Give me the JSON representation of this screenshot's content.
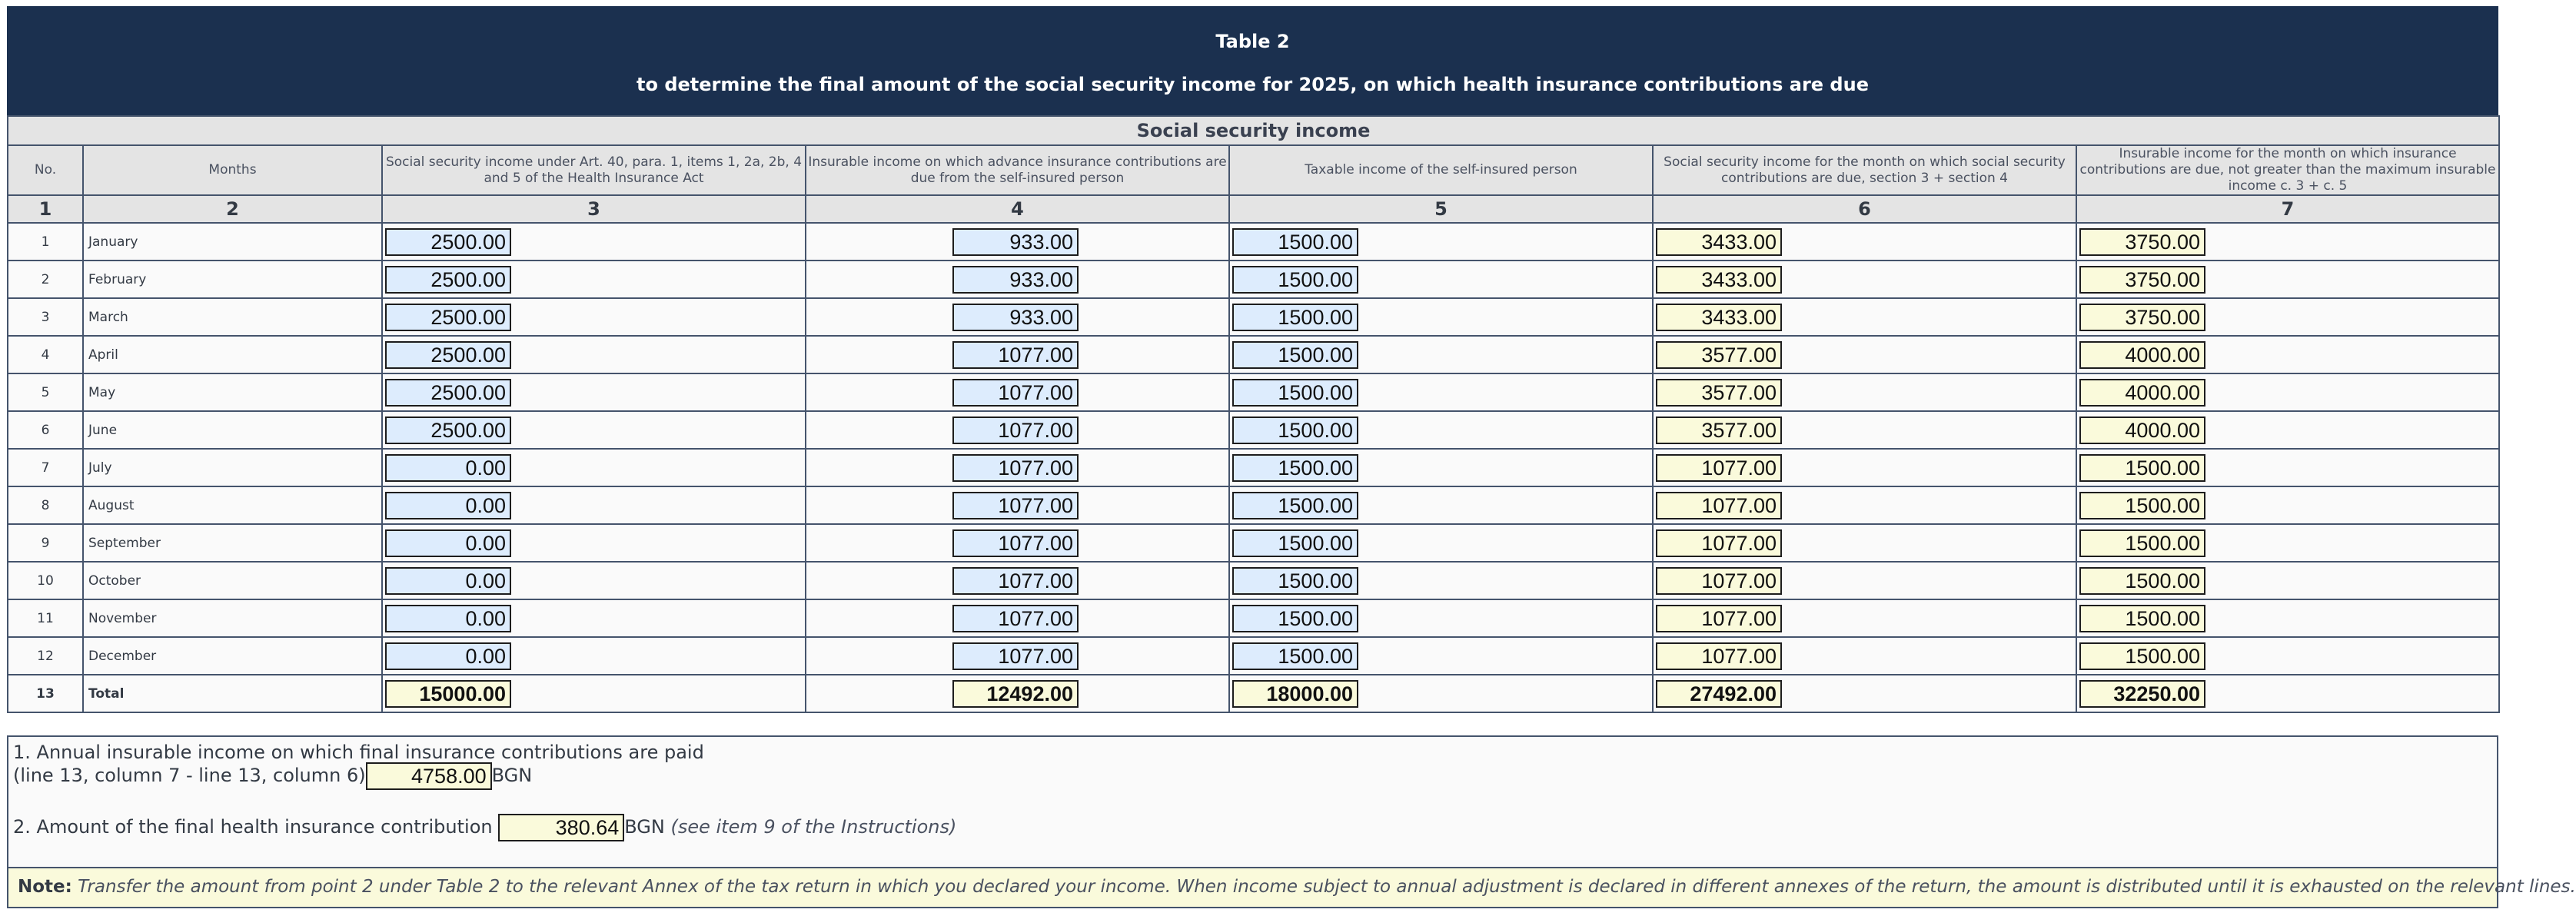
{
  "header": {
    "title": "Table 2",
    "subtitle": "to determine the final amount of the social security income for 2025, on which health insurance contributions are due"
  },
  "table": {
    "section_title": "Social security income",
    "columns": [
      "No.",
      "Months",
      "Social security income under Art. 40, para. 1, items 1, 2a, 2b, 4 and 5 of the Health Insurance Act",
      "Insurable income on which advance insurance contributions are due from the self-insured person",
      "Taxable income of the self-insured person",
      "Social security income for the month on which social security contributions are due, section 3 + section 4",
      "Insurable income for the month on which insurance contributions are due, not greater than the maximum insurable income c. 3 + c. 5"
    ],
    "column_numbers": [
      "1",
      "2",
      "3",
      "4",
      "5",
      "6",
      "7"
    ],
    "rows": [
      {
        "no": "1",
        "month": "January",
        "c3": "2500.00",
        "c4": "933.00",
        "c5": "1500.00",
        "c6": "3433.00",
        "c7": "3750.00"
      },
      {
        "no": "2",
        "month": "February",
        "c3": "2500.00",
        "c4": "933.00",
        "c5": "1500.00",
        "c6": "3433.00",
        "c7": "3750.00"
      },
      {
        "no": "3",
        "month": "March",
        "c3": "2500.00",
        "c4": "933.00",
        "c5": "1500.00",
        "c6": "3433.00",
        "c7": "3750.00"
      },
      {
        "no": "4",
        "month": "April",
        "c3": "2500.00",
        "c4": "1077.00",
        "c5": "1500.00",
        "c6": "3577.00",
        "c7": "4000.00"
      },
      {
        "no": "5",
        "month": "May",
        "c3": "2500.00",
        "c4": "1077.00",
        "c5": "1500.00",
        "c6": "3577.00",
        "c7": "4000.00"
      },
      {
        "no": "6",
        "month": "June",
        "c3": "2500.00",
        "c4": "1077.00",
        "c5": "1500.00",
        "c6": "3577.00",
        "c7": "4000.00"
      },
      {
        "no": "7",
        "month": "July",
        "c3": "0.00",
        "c4": "1077.00",
        "c5": "1500.00",
        "c6": "1077.00",
        "c7": "1500.00"
      },
      {
        "no": "8",
        "month": "August",
        "c3": "0.00",
        "c4": "1077.00",
        "c5": "1500.00",
        "c6": "1077.00",
        "c7": "1500.00"
      },
      {
        "no": "9",
        "month": "September",
        "c3": "0.00",
        "c4": "1077.00",
        "c5": "1500.00",
        "c6": "1077.00",
        "c7": "1500.00"
      },
      {
        "no": "10",
        "month": "October",
        "c3": "0.00",
        "c4": "1077.00",
        "c5": "1500.00",
        "c6": "1077.00",
        "c7": "1500.00"
      },
      {
        "no": "11",
        "month": "November",
        "c3": "0.00",
        "c4": "1077.00",
        "c5": "1500.00",
        "c6": "1077.00",
        "c7": "1500.00"
      },
      {
        "no": "12",
        "month": "December",
        "c3": "0.00",
        "c4": "1077.00",
        "c5": "1500.00",
        "c6": "1077.00",
        "c7": "1500.00"
      }
    ],
    "total": {
      "no": "13",
      "label": "Total",
      "c3": "15000.00",
      "c4": "12492.00",
      "c5": "18000.00",
      "c6": "27492.00",
      "c7": "32250.00"
    }
  },
  "summary": {
    "item1_line1": "1. Annual insurable income on which final insurance contributions are paid",
    "item1_line2": "(line 13, column 7 - line 13, column 6)",
    "item1_value": "4758.00",
    "item1_unit": "BGN",
    "item2_label": "2. Amount of the final health insurance contribution",
    "item2_value": "380.64",
    "item2_unit": "BGN",
    "item2_note": "(see item 9 of the Instructions)",
    "note_label": "Note:",
    "note_text": "Transfer the amount from point 2 under Table 2 to the relevant Annex of the tax return in which you declared your income. When income subject to annual adjustment is declared in different annexes of the return, the amount is distributed until it is exhausted on the relevant lines."
  },
  "colors": {
    "header_bg": "#1b304f",
    "input_blue": "#ddecfd",
    "input_cream": "#fafadb"
  }
}
